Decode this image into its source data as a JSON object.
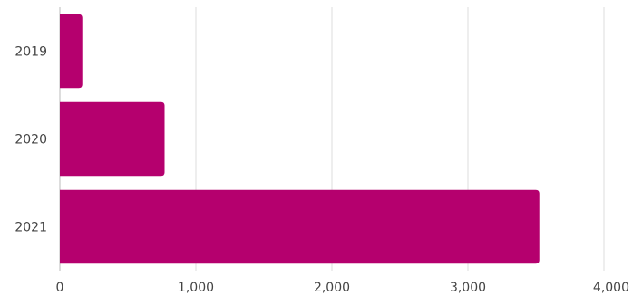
{
  "chart_data": {
    "type": "bar",
    "orientation": "horizontal",
    "categories": [
      "2019",
      "2020",
      "2021"
    ],
    "values": [
      165,
      770,
      3525
    ],
    "xlim": [
      0,
      4000
    ],
    "x_ticks": [
      "0",
      "1,000",
      "2,000",
      "3,000",
      "4,000"
    ],
    "x_tick_values": [
      0,
      1000,
      2000,
      3000,
      4000
    ],
    "grid": true,
    "legend": "none",
    "title": "",
    "xlabel": "",
    "ylabel": "",
    "bar_color": "#b5006e"
  }
}
